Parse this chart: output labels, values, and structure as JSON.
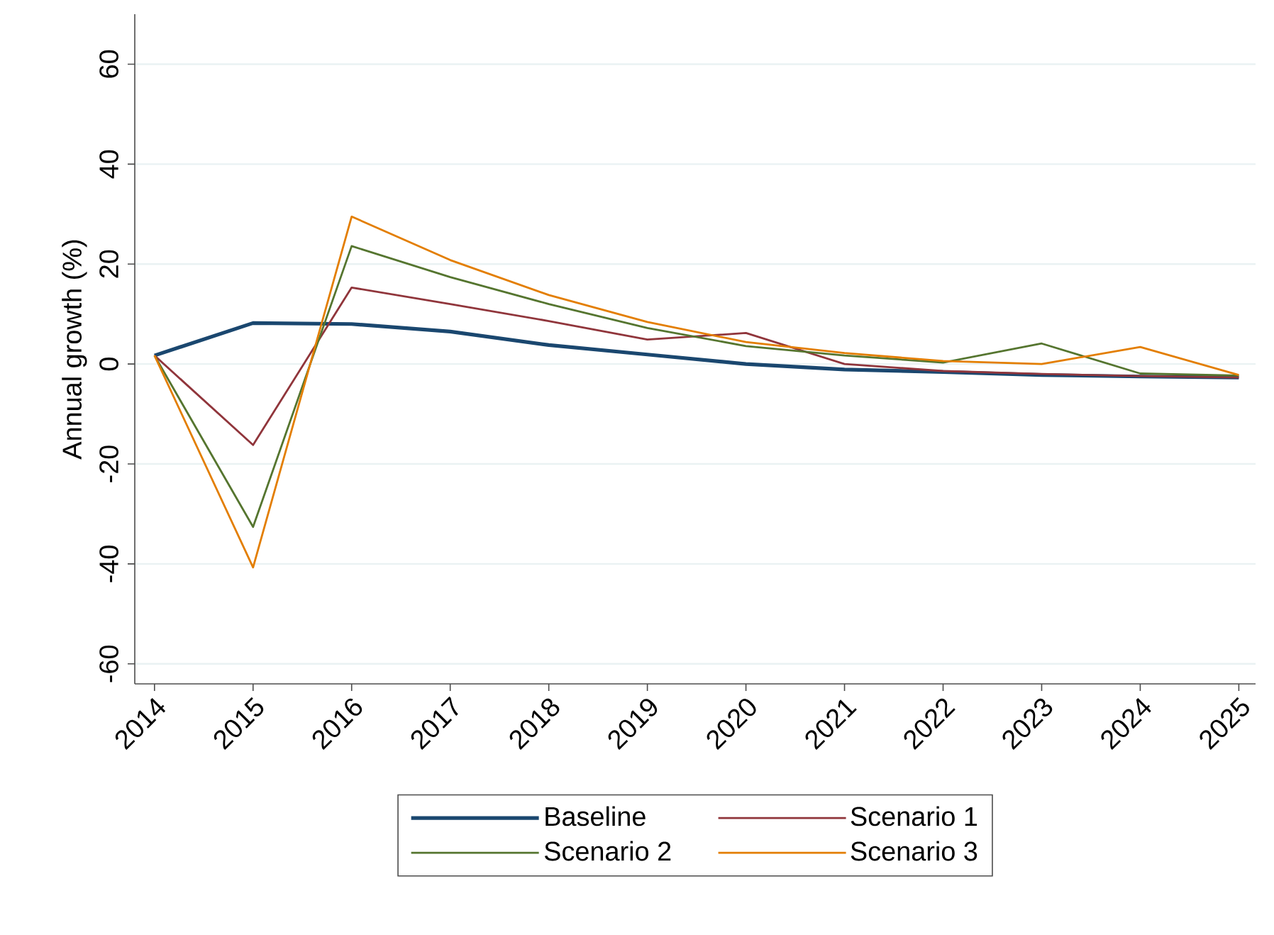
{
  "chart_data": {
    "type": "line",
    "ylabel": "Annual growth (%)",
    "categories": [
      "2014",
      "2015",
      "2016",
      "2017",
      "2018",
      "2019",
      "2020",
      "2021",
      "2022",
      "2023",
      "2024",
      "2025"
    ],
    "series": [
      {
        "name": "Baseline",
        "color": "#1a476f",
        "values": [
          1.7,
          8.2,
          8.0,
          6.5,
          3.8,
          1.9,
          0.0,
          -1.1,
          -1.6,
          -2.2,
          -2.5,
          -2.7
        ]
      },
      {
        "name": "Scenario 1",
        "color": "#90353b",
        "values": [
          1.7,
          -16.2,
          15.3,
          12.0,
          8.6,
          4.9,
          6.2,
          0.0,
          -1.4,
          -2.0,
          -2.4,
          -2.7
        ]
      },
      {
        "name": "Scenario 2",
        "color": "#55752f",
        "values": [
          1.7,
          -32.6,
          23.6,
          17.4,
          12.0,
          7.2,
          3.6,
          1.7,
          0.3,
          4.1,
          -1.9,
          -2.3
        ]
      },
      {
        "name": "Scenario 3",
        "color": "#e37e00",
        "values": [
          1.7,
          -40.7,
          29.5,
          20.8,
          13.8,
          8.4,
          4.4,
          2.2,
          0.6,
          0.0,
          3.4,
          -2.2
        ]
      }
    ],
    "ylim": [
      -64,
      70
    ],
    "yticks": [
      -60,
      -40,
      -20,
      0,
      20,
      40,
      60
    ],
    "grid": "y",
    "legend": "bottom"
  }
}
